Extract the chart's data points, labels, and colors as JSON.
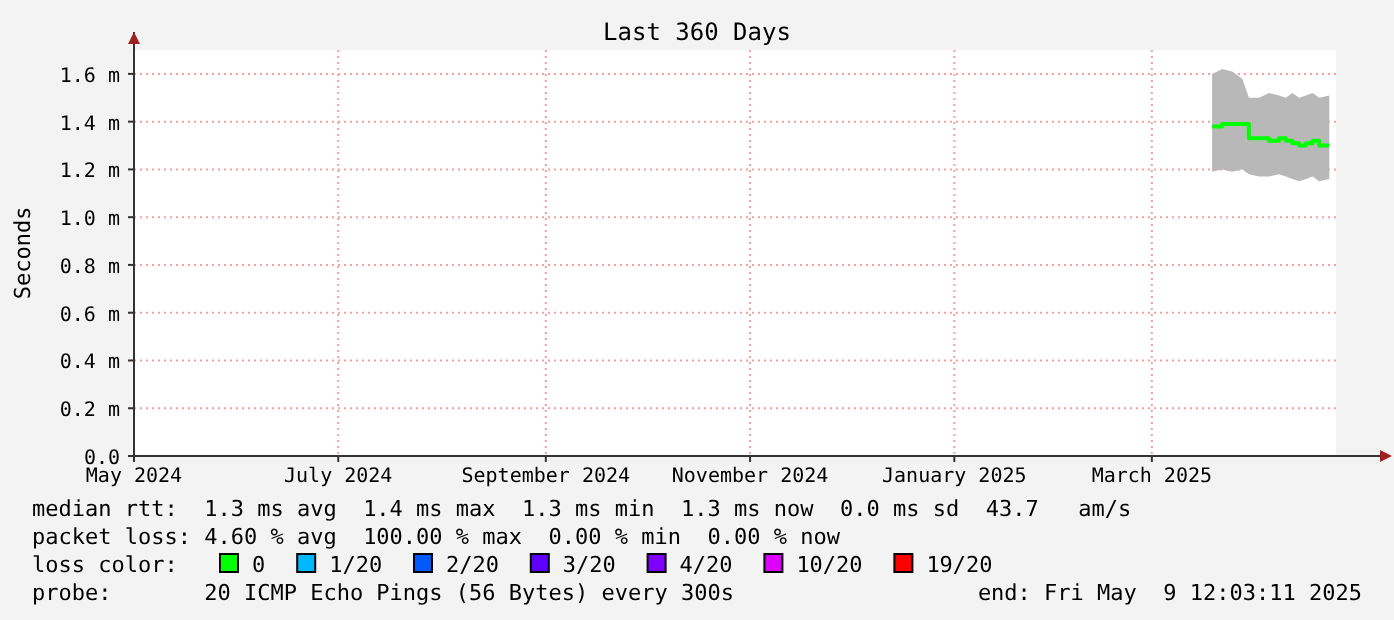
{
  "chart_data": {
    "type": "line",
    "title": "Last 360 Days",
    "ylabel": "Seconds",
    "xlim": [
      "2024-05-01",
      "2025-04-25"
    ],
    "xticks": [
      {
        "value": "2024-05-01",
        "label": "May 2024"
      },
      {
        "value": "2024-07-01",
        "label": "July 2024"
      },
      {
        "value": "2024-09-01",
        "label": "September 2024"
      },
      {
        "value": "2024-11-01",
        "label": "November 2024"
      },
      {
        "value": "2025-01-01",
        "label": "January 2025"
      },
      {
        "value": "2025-03-01",
        "label": "March 2025"
      }
    ],
    "ylim": [
      0,
      1.7
    ],
    "yticks": [
      {
        "value": 0,
        "label": "0.0"
      },
      {
        "value": 0.2,
        "label": "0.2 m"
      },
      {
        "value": 0.4,
        "label": "0.4 m"
      },
      {
        "value": 0.6,
        "label": "0.6 m"
      },
      {
        "value": 0.8,
        "label": "0.8 m"
      },
      {
        "value": 1.0,
        "label": "1.0 m"
      },
      {
        "value": 1.2,
        "label": "1.2 m"
      },
      {
        "value": 1.4,
        "label": "1.4 m"
      },
      {
        "value": 1.6,
        "label": "1.6 m"
      }
    ],
    "grid": true,
    "legend": "bottom",
    "x": [
      "2025-03-19",
      "2025-03-22",
      "2025-03-25",
      "2025-03-28",
      "2025-03-30",
      "2025-04-02",
      "2025-04-05",
      "2025-04-08",
      "2025-04-10",
      "2025-04-12",
      "2025-04-14",
      "2025-04-16",
      "2025-04-18",
      "2025-04-20",
      "2025-04-23"
    ],
    "series": [
      {
        "name": "0",
        "color": "#00ff00",
        "values": [
          1.38,
          1.39,
          1.39,
          1.39,
          1.33,
          1.33,
          1.32,
          1.33,
          1.32,
          1.31,
          1.3,
          1.31,
          1.32,
          1.3,
          1.3
        ],
        "lower": [
          1.19,
          1.2,
          1.19,
          1.2,
          1.18,
          1.17,
          1.17,
          1.18,
          1.17,
          1.16,
          1.15,
          1.16,
          1.17,
          1.15,
          1.16
        ],
        "upper": [
          1.6,
          1.62,
          1.61,
          1.58,
          1.5,
          1.5,
          1.52,
          1.51,
          1.5,
          1.52,
          1.5,
          1.51,
          1.52,
          1.5,
          1.51
        ]
      },
      {
        "name": "1/20",
        "color": "#00b8ff",
        "values": [
          null,
          null,
          null,
          null,
          null,
          null,
          null,
          null,
          null,
          null,
          null,
          null,
          null,
          null,
          null
        ]
      },
      {
        "name": "2/20",
        "color": "#0059ff",
        "values": [
          null,
          null,
          null,
          null,
          null,
          null,
          null,
          null,
          null,
          null,
          null,
          null,
          null,
          null,
          null
        ]
      },
      {
        "name": "3/20",
        "color": "#5e00ff",
        "values": [
          null,
          null,
          null,
          null,
          null,
          null,
          null,
          null,
          null,
          null,
          null,
          null,
          null,
          null,
          null
        ]
      },
      {
        "name": "4/20",
        "color": "#7e00ff",
        "values": [
          null,
          null,
          null,
          null,
          null,
          null,
          null,
          null,
          null,
          null,
          null,
          null,
          null,
          null,
          null
        ]
      },
      {
        "name": "10/20",
        "color": "#dd00ff",
        "values": [
          null,
          null,
          null,
          null,
          null,
          null,
          null,
          null,
          null,
          null,
          null,
          null,
          null,
          null,
          null
        ]
      },
      {
        "name": "19/20",
        "color": "#ff0000",
        "values": [
          null,
          null,
          null,
          null,
          null,
          null,
          null,
          null,
          null,
          null,
          null,
          null,
          null,
          null,
          null
        ]
      }
    ],
    "annotations": [
      "median rtt:  1.3 ms avg  1.4 ms max  1.3 ms min  1.3 ms now  0.0 ms sd  43.7   am/s",
      "packet loss: 4.60 % avg  100.00 % max  0.00 % min  0.00 % now",
      "loss color:",
      "probe:       20 ICMP Echo Pings (56 Bytes) every 300s",
      "end: Fri May  9 12:03:11 2025"
    ]
  }
}
